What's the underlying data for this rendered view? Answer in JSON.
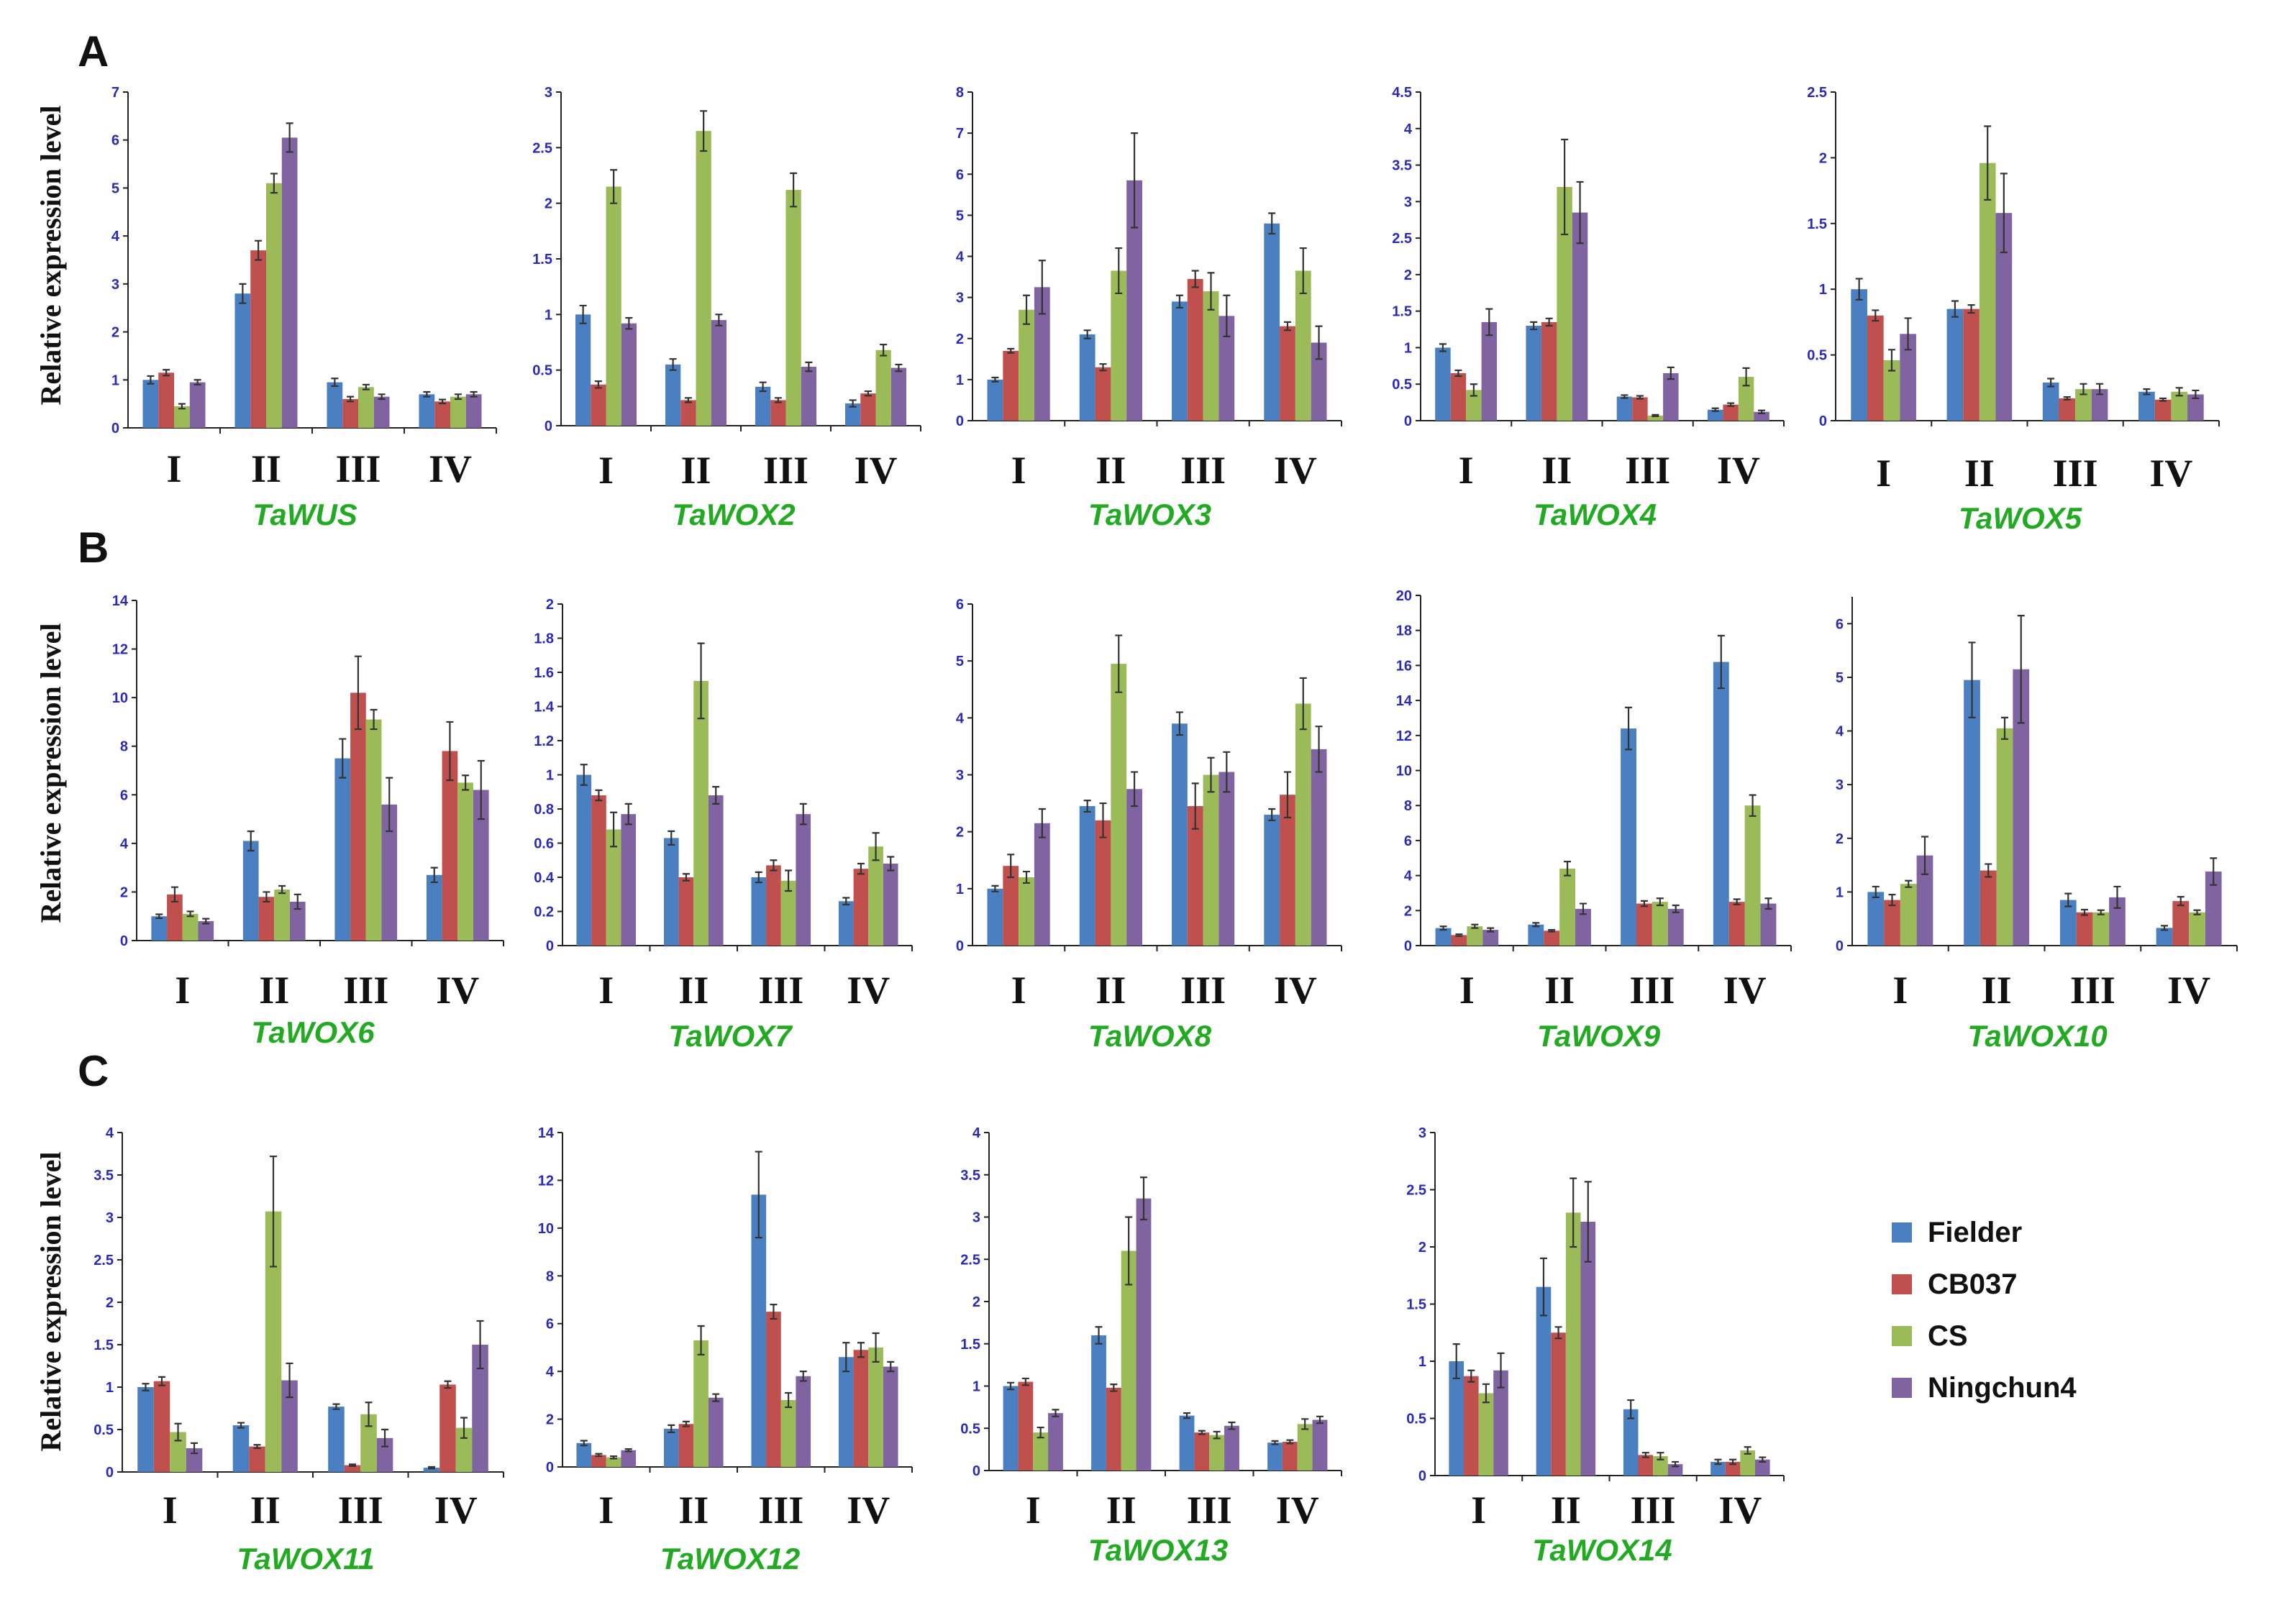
{
  "figure": {
    "panels": [
      "A",
      "B",
      "C"
    ],
    "ylabel": "Relative expression level",
    "legend_title": "",
    "legend": [
      "Fielder",
      "CB037",
      "CS",
      "Ningchun4"
    ]
  },
  "colors": {
    "Fielder": "#4a7fc1",
    "CB037": "#c0504d",
    "CS": "#9bbb59",
    "Ningchun4": "#8064a2"
  },
  "chart_data": [
    {
      "type": "bar",
      "title": "TaWUS",
      "categories": [
        "I",
        "II",
        "III",
        "IV"
      ],
      "yticks": [
        "0",
        "1",
        "2",
        "3",
        "4",
        "5",
        "6",
        "7"
      ],
      "ylim": [
        0,
        7
      ],
      "series": [
        {
          "name": "Fielder",
          "values": [
            1.0,
            2.8,
            0.95,
            0.7
          ],
          "errors": [
            0.08,
            0.2,
            0.08,
            0.05
          ]
        },
        {
          "name": "CB037",
          "values": [
            1.15,
            3.7,
            0.6,
            0.55
          ],
          "errors": [
            0.06,
            0.2,
            0.05,
            0.04
          ]
        },
        {
          "name": "CS",
          "values": [
            0.45,
            5.1,
            0.85,
            0.65
          ],
          "errors": [
            0.05,
            0.2,
            0.05,
            0.05
          ]
        },
        {
          "name": "Ningchun4",
          "values": [
            0.95,
            6.05,
            0.65,
            0.7
          ],
          "errors": [
            0.05,
            0.3,
            0.05,
            0.05
          ]
        }
      ]
    },
    {
      "type": "bar",
      "title": "TaWOX2",
      "categories": [
        "I",
        "II",
        "III",
        "IV"
      ],
      "yticks": [
        "0",
        "0.5",
        "1",
        "1.5",
        "2",
        "2.5",
        "3"
      ],
      "ylim": [
        0,
        3
      ],
      "series": [
        {
          "name": "Fielder",
          "values": [
            1.0,
            0.55,
            0.35,
            0.2
          ],
          "errors": [
            0.08,
            0.05,
            0.04,
            0.03
          ]
        },
        {
          "name": "CB037",
          "values": [
            0.37,
            0.23,
            0.23,
            0.29
          ],
          "errors": [
            0.03,
            0.02,
            0.02,
            0.02
          ]
        },
        {
          "name": "CS",
          "values": [
            2.15,
            2.65,
            2.12,
            0.68
          ],
          "errors": [
            0.15,
            0.18,
            0.15,
            0.05
          ]
        },
        {
          "name": "Ningchun4",
          "values": [
            0.92,
            0.95,
            0.53,
            0.52
          ],
          "errors": [
            0.05,
            0.05,
            0.04,
            0.03
          ]
        }
      ]
    },
    {
      "type": "bar",
      "title": "TaWOX3",
      "categories": [
        "I",
        "II",
        "III",
        "IV"
      ],
      "yticks": [
        "0",
        "1",
        "2",
        "3",
        "4",
        "5",
        "6",
        "7",
        "8"
      ],
      "ylim": [
        0,
        8
      ],
      "series": [
        {
          "name": "Fielder",
          "values": [
            1.0,
            2.1,
            2.9,
            4.8
          ],
          "errors": [
            0.05,
            0.1,
            0.15,
            0.25
          ]
        },
        {
          "name": "CB037",
          "values": [
            1.7,
            1.3,
            3.45,
            2.3
          ],
          "errors": [
            0.05,
            0.08,
            0.2,
            0.1
          ]
        },
        {
          "name": "CS",
          "values": [
            2.7,
            3.65,
            3.15,
            3.65
          ],
          "errors": [
            0.35,
            0.55,
            0.45,
            0.55
          ]
        },
        {
          "name": "Ningchun4",
          "values": [
            3.25,
            5.85,
            2.55,
            1.9
          ],
          "errors": [
            0.65,
            1.15,
            0.5,
            0.4
          ]
        }
      ]
    },
    {
      "type": "bar",
      "title": "TaWOX4",
      "categories": [
        "I",
        "II",
        "III",
        "IV"
      ],
      "yticks": [
        "0",
        "0.5",
        "1",
        "1.5",
        "2",
        "2.5",
        "3",
        "3.5",
        "4",
        "4.5"
      ],
      "ylim": [
        0,
        4.5
      ],
      "series": [
        {
          "name": "Fielder",
          "values": [
            1.0,
            1.3,
            0.33,
            0.15
          ],
          "errors": [
            0.05,
            0.05,
            0.02,
            0.02
          ]
        },
        {
          "name": "CB037",
          "values": [
            0.65,
            1.35,
            0.32,
            0.22
          ],
          "errors": [
            0.04,
            0.05,
            0.02,
            0.02
          ]
        },
        {
          "name": "CS",
          "values": [
            0.42,
            3.2,
            0.07,
            0.6
          ],
          "errors": [
            0.08,
            0.65,
            0.01,
            0.12
          ]
        },
        {
          "name": "Ningchun4",
          "values": [
            1.35,
            2.85,
            0.65,
            0.12
          ],
          "errors": [
            0.18,
            0.42,
            0.08,
            0.02
          ]
        }
      ]
    },
    {
      "type": "bar",
      "title": "TaWOX5",
      "categories": [
        "I",
        "II",
        "III",
        "IV"
      ],
      "yticks": [
        "0",
        "0.5",
        "1",
        "1.5",
        "2",
        "2.5"
      ],
      "ylim": [
        0,
        2.5
      ],
      "series": [
        {
          "name": "Fielder",
          "values": [
            1.0,
            0.85,
            0.29,
            0.22
          ],
          "errors": [
            0.08,
            0.06,
            0.03,
            0.02
          ]
        },
        {
          "name": "CB037",
          "values": [
            0.8,
            0.85,
            0.17,
            0.16
          ],
          "errors": [
            0.04,
            0.03,
            0.01,
            0.01
          ]
        },
        {
          "name": "CS",
          "values": [
            0.46,
            1.96,
            0.24,
            0.22
          ],
          "errors": [
            0.08,
            0.28,
            0.04,
            0.03
          ]
        },
        {
          "name": "Ningchun4",
          "values": [
            0.66,
            1.58,
            0.24,
            0.2
          ],
          "errors": [
            0.12,
            0.3,
            0.04,
            0.03
          ]
        }
      ]
    },
    {
      "type": "bar",
      "title": "TaWOX6",
      "categories": [
        "I",
        "II",
        "III",
        "IV"
      ],
      "yticks": [
        "0",
        "2",
        "4",
        "6",
        "8",
        "10",
        "12",
        "14"
      ],
      "ylim": [
        0,
        14
      ],
      "series": [
        {
          "name": "Fielder",
          "values": [
            1.0,
            4.1,
            7.5,
            2.7
          ],
          "errors": [
            0.08,
            0.4,
            0.8,
            0.3
          ]
        },
        {
          "name": "CB037",
          "values": [
            1.9,
            1.8,
            10.2,
            7.8
          ],
          "errors": [
            0.3,
            0.2,
            1.5,
            1.2
          ]
        },
        {
          "name": "CS",
          "values": [
            1.1,
            2.1,
            9.1,
            6.5
          ],
          "errors": [
            0.1,
            0.15,
            0.4,
            0.3
          ]
        },
        {
          "name": "Ningchun4",
          "values": [
            0.8,
            1.6,
            5.6,
            6.2
          ],
          "errors": [
            0.1,
            0.3,
            1.1,
            1.2
          ]
        }
      ]
    },
    {
      "type": "bar",
      "title": "TaWOX7",
      "categories": [
        "I",
        "II",
        "III",
        "IV"
      ],
      "yticks": [
        "0",
        "0.2",
        "0.4",
        "0.6",
        "0.8",
        "1",
        "1.2",
        "1.4",
        "1.6",
        "1.8",
        "2"
      ],
      "ylim": [
        0,
        2
      ],
      "series": [
        {
          "name": "Fielder",
          "values": [
            1.0,
            0.63,
            0.4,
            0.26
          ],
          "errors": [
            0.06,
            0.04,
            0.03,
            0.02
          ]
        },
        {
          "name": "CB037",
          "values": [
            0.88,
            0.4,
            0.47,
            0.45
          ],
          "errors": [
            0.03,
            0.02,
            0.03,
            0.03
          ]
        },
        {
          "name": "CS",
          "values": [
            0.68,
            1.55,
            0.38,
            0.58
          ],
          "errors": [
            0.1,
            0.22,
            0.06,
            0.08
          ]
        },
        {
          "name": "Ningchun4",
          "values": [
            0.77,
            0.88,
            0.77,
            0.48
          ],
          "errors": [
            0.06,
            0.05,
            0.06,
            0.04
          ]
        }
      ]
    },
    {
      "type": "bar",
      "title": "TaWOX8",
      "categories": [
        "I",
        "II",
        "III",
        "IV"
      ],
      "yticks": [
        "0",
        "1",
        "2",
        "3",
        "4",
        "5",
        "6"
      ],
      "ylim": [
        0,
        6
      ],
      "series": [
        {
          "name": "Fielder",
          "values": [
            1.0,
            2.45,
            3.9,
            2.3
          ],
          "errors": [
            0.05,
            0.1,
            0.2,
            0.1
          ]
        },
        {
          "name": "CB037",
          "values": [
            1.4,
            2.2,
            2.45,
            2.65
          ],
          "errors": [
            0.2,
            0.3,
            0.4,
            0.4
          ]
        },
        {
          "name": "CS",
          "values": [
            1.2,
            4.95,
            3.0,
            4.25
          ],
          "errors": [
            0.1,
            0.5,
            0.3,
            0.45
          ]
        },
        {
          "name": "Ningchun4",
          "values": [
            2.15,
            2.75,
            3.05,
            3.45
          ],
          "errors": [
            0.25,
            0.3,
            0.35,
            0.4
          ]
        }
      ]
    },
    {
      "type": "bar",
      "title": "TaWOX9",
      "categories": [
        "I",
        "II",
        "III",
        "IV"
      ],
      "yticks": [
        "0",
        "2",
        "4",
        "6",
        "8",
        "10",
        "12",
        "14",
        "16",
        "18",
        "20"
      ],
      "ylim": [
        0,
        20
      ],
      "series": [
        {
          "name": "Fielder",
          "values": [
            1.0,
            1.2,
            12.4,
            16.2
          ],
          "errors": [
            0.1,
            0.1,
            1.2,
            1.5
          ]
        },
        {
          "name": "CB037",
          "values": [
            0.6,
            0.85,
            2.4,
            2.5
          ],
          "errors": [
            0.05,
            0.05,
            0.15,
            0.15
          ]
        },
        {
          "name": "CS",
          "values": [
            1.1,
            4.4,
            2.5,
            8.0
          ],
          "errors": [
            0.1,
            0.4,
            0.2,
            0.6
          ]
        },
        {
          "name": "Ningchun4",
          "values": [
            0.9,
            2.1,
            2.1,
            2.4
          ],
          "errors": [
            0.1,
            0.3,
            0.2,
            0.3
          ]
        }
      ]
    },
    {
      "type": "bar",
      "title": "TaWOX10",
      "categories": [
        "I",
        "II",
        "III",
        "IV"
      ],
      "yticks": [
        "0",
        "1",
        "2",
        "3",
        "4",
        "5",
        "6"
      ],
      "ylim": [
        0,
        6.5
      ],
      "series": [
        {
          "name": "Fielder",
          "values": [
            1.0,
            4.95,
            0.85,
            0.33
          ],
          "errors": [
            0.1,
            0.7,
            0.12,
            0.04
          ]
        },
        {
          "name": "CB037",
          "values": [
            0.85,
            1.4,
            0.62,
            0.83
          ],
          "errors": [
            0.1,
            0.12,
            0.05,
            0.08
          ]
        },
        {
          "name": "CS",
          "values": [
            1.15,
            4.05,
            0.62,
            0.62
          ],
          "errors": [
            0.06,
            0.2,
            0.04,
            0.04
          ]
        },
        {
          "name": "Ningchun4",
          "values": [
            1.68,
            5.15,
            0.9,
            1.38
          ],
          "errors": [
            0.35,
            1.0,
            0.2,
            0.25
          ]
        }
      ]
    },
    {
      "type": "bar",
      "title": "TaWOX11",
      "categories": [
        "I",
        "II",
        "III",
        "IV"
      ],
      "yticks": [
        "0",
        "0.5",
        "1",
        "1.5",
        "2",
        "2.5",
        "3",
        "3.5",
        "4"
      ],
      "ylim": [
        0,
        4
      ],
      "series": [
        {
          "name": "Fielder",
          "values": [
            1.0,
            0.55,
            0.77,
            0.05
          ],
          "errors": [
            0.04,
            0.03,
            0.03,
            0.01
          ]
        },
        {
          "name": "CB037",
          "values": [
            1.07,
            0.3,
            0.08,
            1.03
          ],
          "errors": [
            0.05,
            0.02,
            0.01,
            0.04
          ]
        },
        {
          "name": "CS",
          "values": [
            0.47,
            3.07,
            0.68,
            0.52
          ],
          "errors": [
            0.1,
            0.65,
            0.14,
            0.12
          ]
        },
        {
          "name": "Ningchun4",
          "values": [
            0.28,
            1.08,
            0.4,
            1.5
          ],
          "errors": [
            0.06,
            0.2,
            0.1,
            0.28
          ]
        }
      ]
    },
    {
      "type": "bar",
      "title": "TaWOX12",
      "categories": [
        "I",
        "II",
        "III",
        "IV"
      ],
      "yticks": [
        "0",
        "2",
        "4",
        "6",
        "8",
        "10",
        "12",
        "14"
      ],
      "ylim": [
        0,
        14
      ],
      "series": [
        {
          "name": "Fielder",
          "values": [
            1.0,
            1.6,
            11.4,
            4.6
          ],
          "errors": [
            0.1,
            0.15,
            1.8,
            0.6
          ]
        },
        {
          "name": "CB037",
          "values": [
            0.5,
            1.8,
            6.5,
            4.9
          ],
          "errors": [
            0.05,
            0.1,
            0.3,
            0.3
          ]
        },
        {
          "name": "CS",
          "values": [
            0.4,
            5.3,
            2.8,
            5.0
          ],
          "errors": [
            0.05,
            0.6,
            0.3,
            0.6
          ]
        },
        {
          "name": "Ningchun4",
          "values": [
            0.7,
            2.9,
            3.8,
            4.2
          ],
          "errors": [
            0.05,
            0.15,
            0.2,
            0.2
          ]
        }
      ]
    },
    {
      "type": "bar",
      "title": "TaWOX13",
      "categories": [
        "I",
        "II",
        "III",
        "IV"
      ],
      "yticks": [
        "0",
        "0.5",
        "1",
        "1.5",
        "2",
        "2.5",
        "3",
        "3.5",
        "4"
      ],
      "ylim": [
        0,
        4
      ],
      "series": [
        {
          "name": "Fielder",
          "values": [
            1.0,
            1.6,
            0.65,
            0.33
          ],
          "errors": [
            0.04,
            0.1,
            0.03,
            0.02
          ]
        },
        {
          "name": "CB037",
          "values": [
            1.05,
            0.98,
            0.45,
            0.34
          ],
          "errors": [
            0.04,
            0.04,
            0.02,
            0.02
          ]
        },
        {
          "name": "CS",
          "values": [
            0.45,
            2.6,
            0.42,
            0.55
          ],
          "errors": [
            0.06,
            0.4,
            0.04,
            0.06
          ]
        },
        {
          "name": "Ningchun4",
          "values": [
            0.68,
            3.22,
            0.53,
            0.6
          ],
          "errors": [
            0.04,
            0.25,
            0.04,
            0.04
          ]
        }
      ]
    },
    {
      "type": "bar",
      "title": "TaWOX14",
      "categories": [
        "I",
        "II",
        "III",
        "IV"
      ],
      "yticks": [
        "0",
        "0.5",
        "1",
        "1.5",
        "2",
        "2.5",
        "3"
      ],
      "ylim": [
        0,
        3
      ],
      "series": [
        {
          "name": "Fielder",
          "values": [
            1.0,
            1.65,
            0.58,
            0.12
          ],
          "errors": [
            0.15,
            0.25,
            0.08,
            0.02
          ]
        },
        {
          "name": "CB037",
          "values": [
            0.87,
            1.25,
            0.18,
            0.12
          ],
          "errors": [
            0.05,
            0.05,
            0.02,
            0.02
          ]
        },
        {
          "name": "CS",
          "values": [
            0.72,
            2.3,
            0.17,
            0.22
          ],
          "errors": [
            0.08,
            0.3,
            0.03,
            0.03
          ]
        },
        {
          "name": "Ningchun4",
          "values": [
            0.92,
            2.22,
            0.1,
            0.14
          ],
          "errors": [
            0.15,
            0.35,
            0.02,
            0.02
          ]
        }
      ]
    }
  ]
}
